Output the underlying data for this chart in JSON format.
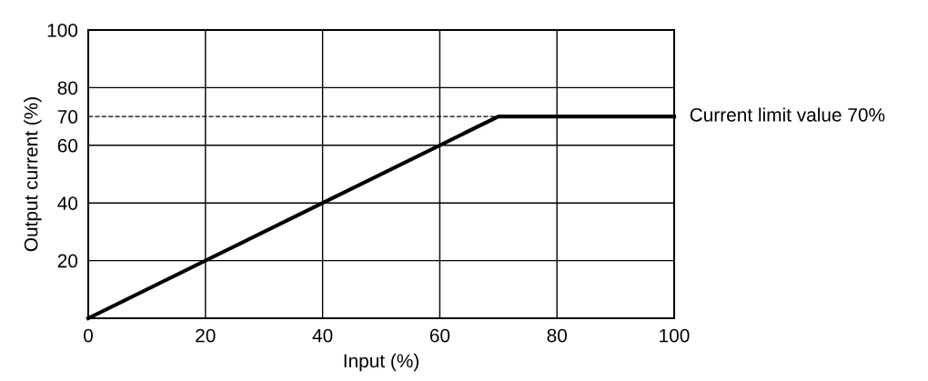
{
  "chart_data": {
    "type": "line",
    "xlabel": "Input (%)",
    "ylabel": "Output current (%)",
    "x": [
      0,
      70,
      100
    ],
    "series": [
      {
        "color": "#000000",
        "values": [
          0,
          70,
          70
        ]
      }
    ],
    "xlim": [
      0,
      100
    ],
    "ylim": [
      0,
      100
    ],
    "xticks": [
      0,
      20,
      40,
      60,
      80,
      100
    ],
    "yticks": [
      20,
      40,
      60,
      70,
      80,
      100
    ],
    "grid": true,
    "marker": "none",
    "line_style": "solid",
    "ref_lines": [
      {
        "axis": "y",
        "value": 70,
        "color": "#000000",
        "line_style": "dashed"
      }
    ],
    "annotations": [
      {
        "text": "Current limit value 70%",
        "x": 100,
        "y": 70
      }
    ]
  }
}
